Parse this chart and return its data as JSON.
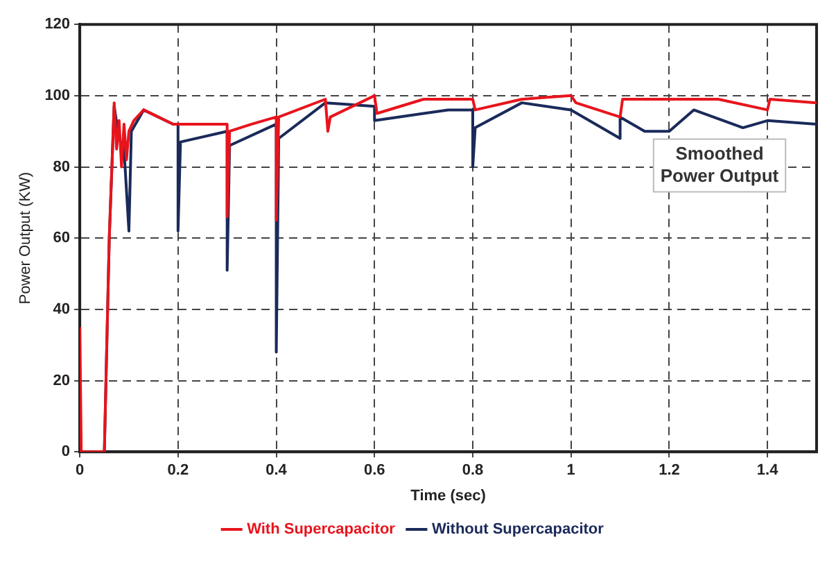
{
  "chart_data": {
    "type": "line",
    "xlabel": "Time (sec)",
    "ylabel": "Power Output (KW)",
    "xlim": [
      0,
      1.5
    ],
    "xticks": [
      0,
      0.2,
      0.4,
      0.6,
      0.8,
      1,
      1.2,
      1.4
    ],
    "ylim": [
      0,
      120
    ],
    "yticks": [
      0,
      20,
      40,
      60,
      80,
      100,
      120
    ],
    "grid": true,
    "legend": "bottom",
    "annotations": [
      "Smoothed Power Output"
    ],
    "series": [
      {
        "name": "With Supercapacitor",
        "color": "#e8141c",
        "x": [
          0,
          0.003,
          0.05,
          0.06,
          0.07,
          0.075,
          0.08,
          0.085,
          0.09,
          0.095,
          0.1,
          0.11,
          0.13,
          0.16,
          0.19,
          0.2,
          0.3,
          0.3,
          0.305,
          0.35,
          0.4,
          0.4,
          0.405,
          0.5,
          0.505,
          0.51,
          0.6,
          0.605,
          0.7,
          0.8,
          0.805,
          0.9,
          1.0,
          1.01,
          1.1,
          1.105,
          1.2,
          1.3,
          1.4,
          1.405,
          1.5
        ],
        "values": [
          35,
          0,
          0,
          60,
          98,
          85,
          93,
          80,
          92,
          82,
          90,
          93,
          96,
          94,
          92,
          92,
          92,
          66,
          90,
          92,
          94,
          65,
          94,
          99,
          90,
          94,
          100,
          95,
          99,
          99,
          96,
          99,
          100,
          98,
          94,
          99,
          99,
          99,
          96,
          99,
          98
        ]
      },
      {
        "name": "Without Supercapacitor",
        "color": "#1a2a5a",
        "x": [
          0.05,
          0.06,
          0.07,
          0.08,
          0.09,
          0.1,
          0.105,
          0.13,
          0.19,
          0.2,
          0.2,
          0.205,
          0.3,
          0.3,
          0.305,
          0.4,
          0.4,
          0.405,
          0.5,
          0.6,
          0.6,
          0.7,
          0.75,
          0.8,
          0.8,
          0.805,
          0.9,
          1.0,
          1.1,
          1.1,
          1.15,
          1.2,
          1.25,
          1.35,
          1.4,
          1.5
        ],
        "values": [
          0,
          60,
          97,
          88,
          85,
          62,
          90,
          96,
          92,
          92,
          62,
          87,
          90,
          51,
          86,
          92,
          28,
          88,
          98,
          97,
          93,
          95,
          96,
          96,
          80,
          91,
          98,
          96,
          88,
          94,
          90,
          90,
          96,
          91,
          93,
          92
        ]
      }
    ]
  }
}
